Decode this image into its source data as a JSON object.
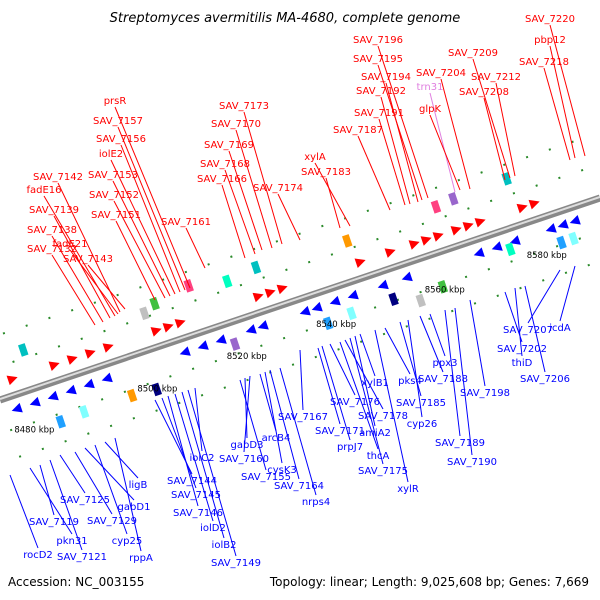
{
  "title": "Streptomyces avermitilis MA-4680, complete genome",
  "footer": {
    "accession": "Accession: NC_003155",
    "summary": "Topology: linear; Length: 9,025,608 bp; Genes: 7,669"
  },
  "ticks": [
    "8480 kbp",
    "8500 kbp",
    "8520 kbp",
    "8540 kbp",
    "8560 kbp",
    "8580 kbp"
  ],
  "colors": {
    "forward": "#ff0000",
    "reverse": "#0000ff",
    "rna": "#e080e0"
  },
  "labels_top": [
    "SAV_7132",
    "SAV_7138",
    "SAV_7139",
    "fadE16",
    "fadE21",
    "SAV_7142",
    "SAV_7143",
    "SAV_7151",
    "SAV_7152",
    "SAV_7153",
    "iolE2",
    "SAV_7156",
    "SAV_7157",
    "prsR",
    "SAV_7161",
    "SAV_7166",
    "SAV_7168",
    "SAV_7169",
    "SAV_7170",
    "SAV_7173",
    "SAV_7174",
    "SAV_7183",
    "xylA",
    "SAV_7187",
    "SAV_7191",
    "SAV_7192",
    "SAV_7194",
    "SAV_7195",
    "SAV_7196",
    "trn31",
    "glpK",
    "SAV_7204",
    "SAV_7208",
    "SAV_7209",
    "SAV_7212",
    "SAV_7218",
    "pbp12",
    "SAV_7220"
  ],
  "labels_bottom": [
    "rocD2",
    "pkn31",
    "SAV_7119",
    "SAV_7121",
    "SAV_7125",
    "SAV_7129",
    "gabD1",
    "cyp25",
    "ligB",
    "rppA",
    "SAV_7144",
    "SAV_7145",
    "SAV_7146",
    "iolD2",
    "iolB2",
    "SAV_7149",
    "iolC2",
    "SAV_7155",
    "gabD3",
    "SAV_7160",
    "arcB4",
    "cysK3",
    "SAV_7164",
    "nrps4",
    "SAV_7167",
    "SAV_7171",
    "prpJ7",
    "SAV_7176",
    "thcA",
    "SAV_7178",
    "SAV_7175",
    "amiA2",
    "xylB1",
    "xylR",
    "pks4",
    "SAV_7185",
    "cyp26",
    "SAV_7188",
    "ppx3",
    "SAV_7189",
    "SAV_7190",
    "SAV_7198",
    "SAV_7202",
    "thiD",
    "SAV_7206",
    "SAV_7207",
    "icdA"
  ]
}
